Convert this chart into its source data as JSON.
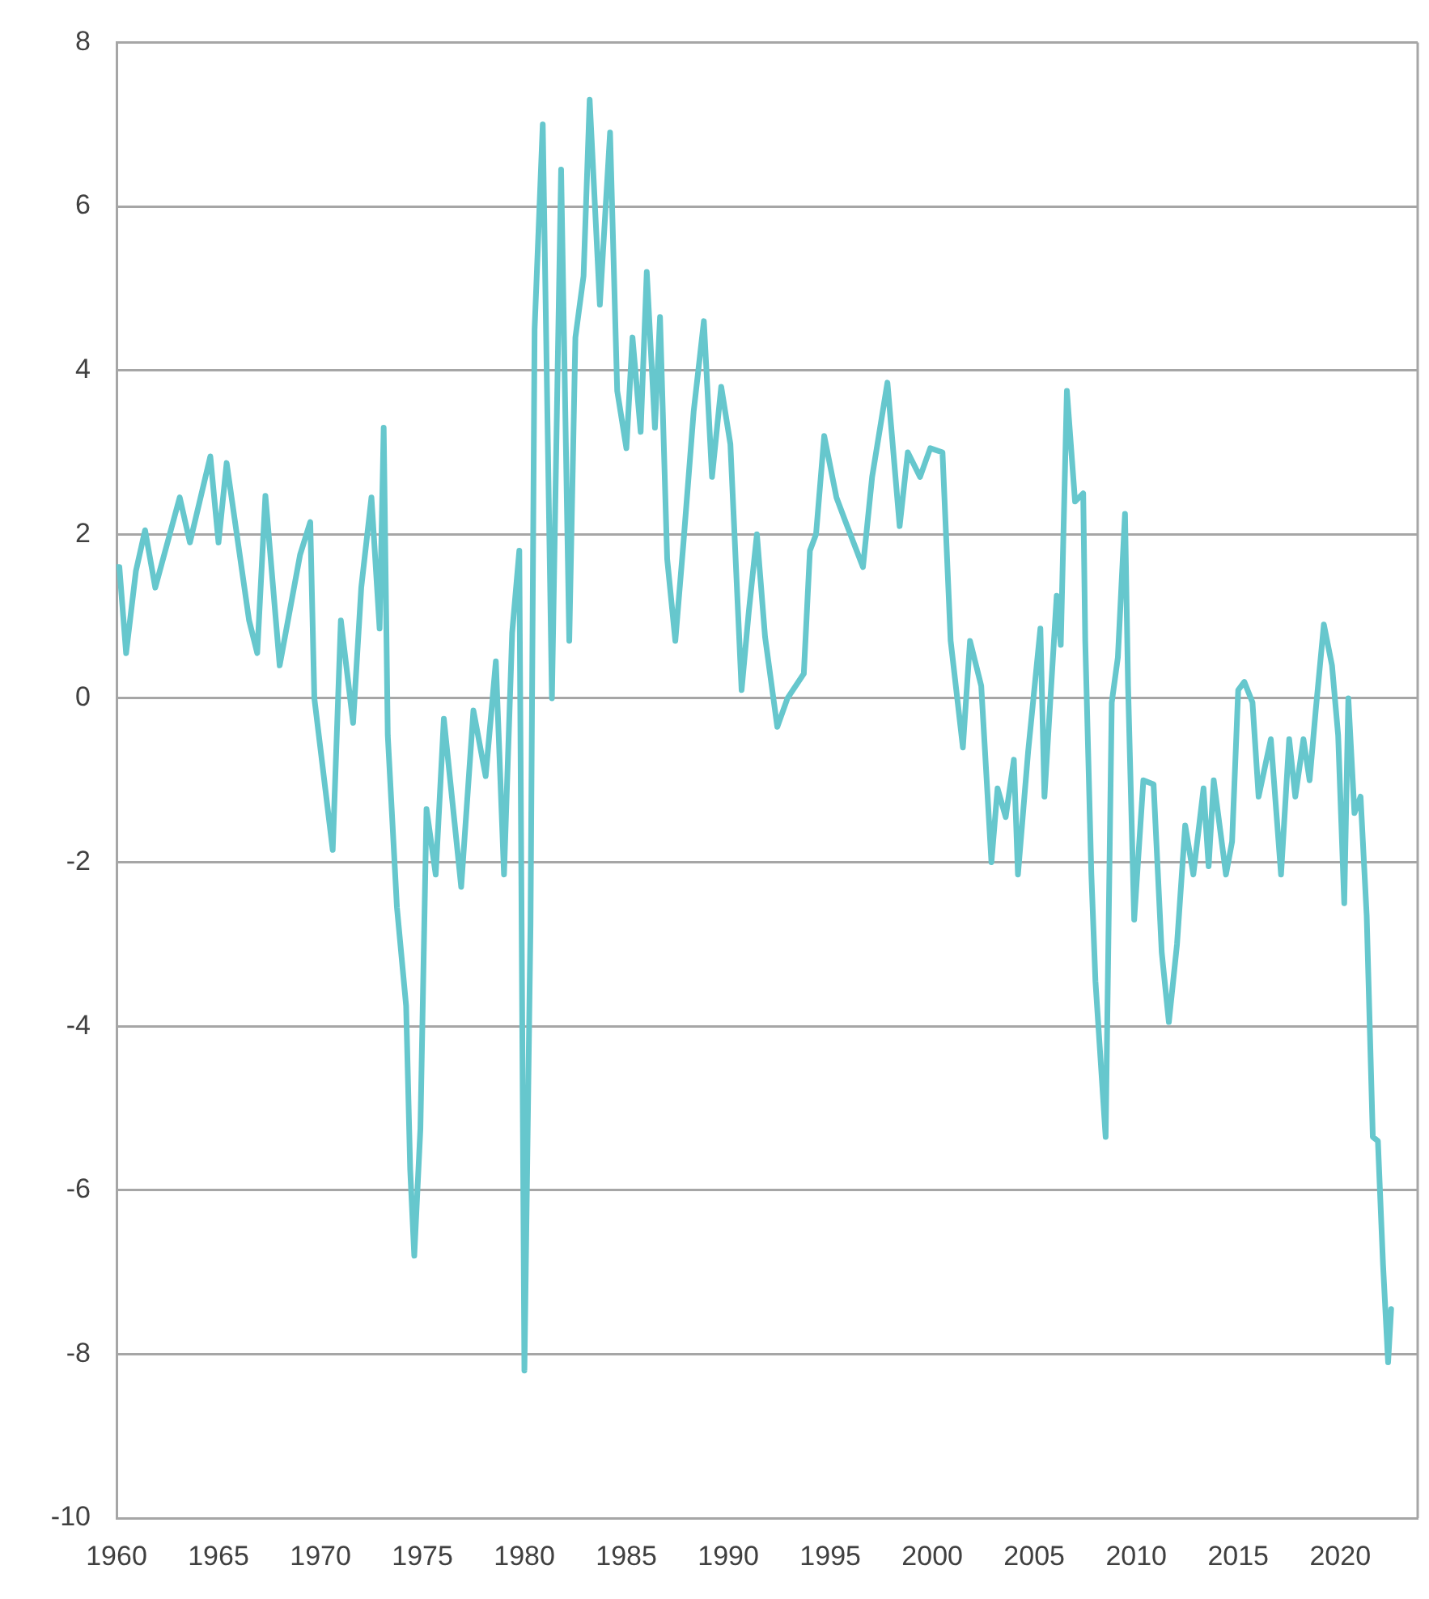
{
  "chart_data": {
    "type": "line",
    "xlim": [
      1960,
      2023.8
    ],
    "xticks": [
      1960,
      1965,
      1970,
      1975,
      1980,
      1985,
      1990,
      1995,
      2000,
      2005,
      2010,
      2015,
      2020
    ],
    "ylim": [
      -10,
      8
    ],
    "yticks": [
      -10,
      -8,
      -6,
      -4,
      -2,
      0,
      2,
      4,
      6,
      8
    ],
    "grid": "y",
    "x": [
      1960,
      1960.14,
      1960.47,
      1960.95,
      1961.4,
      1961.9,
      1963.1,
      1963.6,
      1964.6,
      1965.0,
      1965.4,
      1966.5,
      1966.9,
      1967.3,
      1968.0,
      1969.0,
      1969.5,
      1969.7,
      1970.6,
      1971.0,
      1971.6,
      1972.0,
      1972.5,
      1972.9,
      1973.1,
      1973.3,
      1973.75,
      1974.2,
      1974.4,
      1974.6,
      1974.9,
      1975.2,
      1975.65,
      1976.05,
      1976.9,
      1977.5,
      1978.1,
      1978.6,
      1979.0,
      1979.4,
      1979.75,
      1980.0,
      1980.3,
      1980.5,
      1980.9,
      1981.35,
      1981.8,
      1982.2,
      1982.5,
      1982.9,
      1983.2,
      1983.7,
      1984.2,
      1984.55,
      1985.0,
      1985.3,
      1985.7,
      1986.0,
      1986.4,
      1986.65,
      1987.0,
      1987.4,
      1987.8,
      1988.3,
      1988.8,
      1989.2,
      1989.65,
      1990.1,
      1990.65,
      1991.0,
      1991.4,
      1991.8,
      1992.4,
      1992.9,
      1993.7,
      1994.0,
      1994.3,
      1994.7,
      1995.3,
      1995.75,
      1996.6,
      1997.05,
      1997.8,
      1998.4,
      1998.8,
      1999.4,
      1999.9,
      2000.5,
      2000.9,
      2001.5,
      2001.85,
      2002.4,
      2002.9,
      2003.2,
      2003.6,
      2004.0,
      2004.2,
      2004.7,
      2005.3,
      2005.5,
      2006.1,
      2006.3,
      2006.6,
      2007.0,
      2007.4,
      2007.5,
      2007.8,
      2008.0,
      2008.5,
      2008.8,
      2009.1,
      2009.45,
      2009.6,
      2009.9,
      2010.35,
      2010.85,
      2011.25,
      2011.6,
      2012.0,
      2012.4,
      2012.8,
      2013.3,
      2013.55,
      2013.8,
      2014.4,
      2014.7,
      2015.0,
      2015.3,
      2015.7,
      2016.0,
      2016.6,
      2017.1,
      2017.5,
      2017.8,
      2018.2,
      2018.5,
      2018.8,
      2019.2,
      2019.6,
      2019.9,
      2020.2,
      2020.4,
      2020.7,
      2021.0,
      2021.3,
      2021.6,
      2021.85,
      2022.1,
      2022.35,
      2022.5
    ],
    "series": [
      {
        "color": "#66c7cd",
        "values": [
          1.6,
          1.6,
          0.55,
          1.55,
          2.05,
          1.35,
          2.45,
          1.9,
          2.95,
          1.9,
          2.87,
          0.95,
          0.55,
          2.47,
          0.4,
          1.75,
          2.15,
          0.0,
          -1.85,
          0.95,
          -0.3,
          1.35,
          2.45,
          0.85,
          3.3,
          -0.45,
          -2.55,
          -3.75,
          -5.75,
          -6.8,
          -5.25,
          -1.35,
          -2.15,
          -0.25,
          -2.3,
          -0.15,
          -0.95,
          0.45,
          -2.15,
          0.8,
          1.8,
          -8.2,
          -2.75,
          4.5,
          7.0,
          0.0,
          6.45,
          0.7,
          4.4,
          5.15,
          7.3,
          4.8,
          6.9,
          3.75,
          3.05,
          4.4,
          3.25,
          5.2,
          3.3,
          4.65,
          1.7,
          0.7,
          1.9,
          3.5,
          4.6,
          2.7,
          3.8,
          3.1,
          0.1,
          1.05,
          2.0,
          0.75,
          -0.35,
          0.0,
          0.3,
          1.8,
          2.0,
          3.2,
          2.45,
          2.15,
          1.6,
          2.7,
          3.85,
          2.1,
          3.0,
          2.7,
          3.05,
          3.0,
          0.7,
          -0.6,
          0.7,
          0.15,
          -2.0,
          -1.1,
          -1.45,
          -0.75,
          -2.15,
          -0.65,
          0.85,
          -1.2,
          1.25,
          0.65,
          3.75,
          2.4,
          2.5,
          0.7,
          -2.15,
          -3.45,
          -5.35,
          -0.05,
          0.5,
          2.25,
          0.15,
          -2.7,
          -1.0,
          -1.05,
          -3.1,
          -3.95,
          -3.0,
          -1.55,
          -2.15,
          -1.1,
          -2.05,
          -1.0,
          -2.15,
          -1.75,
          0.1,
          0.2,
          -0.05,
          -1.2,
          -0.5,
          -2.15,
          -0.5,
          -1.2,
          -0.5,
          -1.0,
          -0.15,
          0.9,
          0.4,
          -0.45,
          -2.5,
          0.0,
          -1.4,
          -1.2,
          -2.65,
          -5.35,
          -5.4,
          -6.9,
          -8.1,
          -7.45
        ]
      }
    ]
  }
}
